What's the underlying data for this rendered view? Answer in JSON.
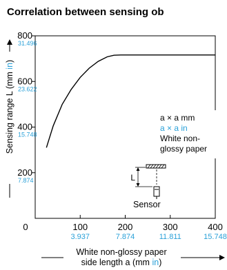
{
  "title": "Correlation between sensing ob",
  "chart_data": {
    "type": "line",
    "title": "Correlation between sensing ob",
    "ylabel_parts": [
      "Sensing range L (mm ",
      "in",
      ")"
    ],
    "xlabel_line1": "White non-glossy paper",
    "xlabel_line2_parts": [
      "side length a (mm ",
      "in",
      ")"
    ],
    "xlim": [
      0,
      400
    ],
    "ylim": [
      0,
      800
    ],
    "x_ticks": [
      {
        "value": 0,
        "label": "0",
        "alt": ""
      },
      {
        "value": 100,
        "label": "100",
        "alt": "3.937"
      },
      {
        "value": 200,
        "label": "200",
        "alt": "7.874"
      },
      {
        "value": 300,
        "label": "300",
        "alt": "11.811"
      },
      {
        "value": 400,
        "label": "400",
        "alt": "15.748"
      }
    ],
    "y_ticks": [
      {
        "value": 200,
        "label": "200",
        "alt": "7.874"
      },
      {
        "value": 400,
        "label": "400",
        "alt": "15.748"
      },
      {
        "value": 600,
        "label": "600",
        "alt": "23.622"
      },
      {
        "value": 800,
        "label": "800",
        "alt": "31.496"
      }
    ],
    "series": [
      {
        "x": [
          25,
          40,
          60,
          80,
          100,
          120,
          140,
          160,
          175,
          190,
          200,
          250,
          300,
          405
        ],
        "y": [
          310,
          405,
          500,
          565,
          618,
          658,
          688,
          708,
          715,
          716,
          716,
          716,
          716,
          716
        ]
      }
    ],
    "annotation": {
      "line1": "a × a mm",
      "line2": "a × a in",
      "line3": "White non-",
      "line4": "glossy paper",
      "L_label": "L",
      "sensor_label": "Sensor"
    },
    "colors": {
      "inch": "#29a0d8",
      "line": "#000000"
    }
  }
}
